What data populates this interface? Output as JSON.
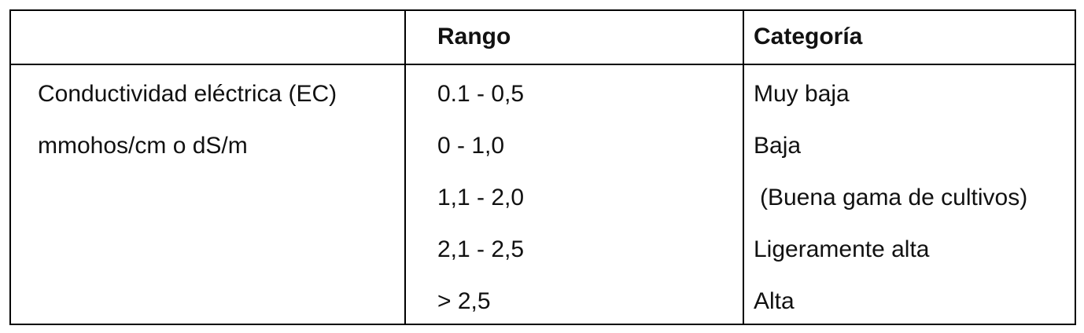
{
  "table": {
    "header": [
      "Rango",
      "Categoría"
    ],
    "parameter": [
      "Conductividad eléctrica (EC)",
      "mmohos/cm o dS/m"
    ],
    "ranges": [
      "0.1 - 0,5",
      "0 - 1,0",
      "1,1 - 2,0",
      "2,1 - 2,5",
      "> 2,5"
    ],
    "categories": [
      "Muy baja",
      "Baja",
      "(Buena gama de cultivos)",
      "Ligeramente alta",
      "Alta"
    ]
  }
}
